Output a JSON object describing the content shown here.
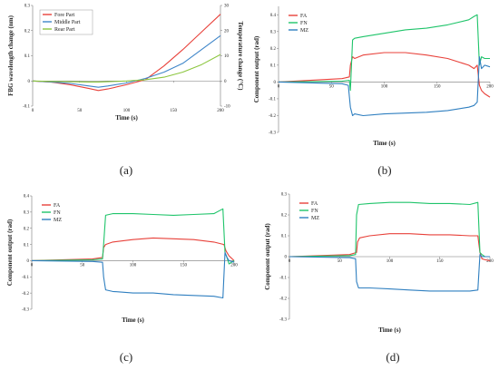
{
  "chart_data": [
    {
      "type": "line",
      "panel_label": "(a)",
      "xlabel": "Time (s)",
      "ylabel": "FBG wavelength change (nm)",
      "y2label": "Temperature change (°C)",
      "xlim": [
        0,
        200
      ],
      "ylim": [
        -0.1,
        0.3
      ],
      "y2lim": [
        -10,
        30
      ],
      "xticks": [
        "0",
        "50",
        "100",
        "150",
        "200"
      ],
      "yticks": [
        "-0.1",
        "0",
        "0.1",
        "0.2",
        "0.3"
      ],
      "y2ticks": [
        "-10",
        "0",
        "10",
        "20",
        "30"
      ],
      "legend_position": "top-left",
      "series": [
        {
          "name": "Fore Part",
          "color": "#e8413a",
          "x": [
            0,
            20,
            40,
            60,
            70,
            80,
            100,
            120,
            140,
            160,
            180,
            200
          ],
          "y": [
            0,
            -0.005,
            -0.015,
            -0.03,
            -0.038,
            -0.032,
            -0.015,
            0.005,
            0.06,
            0.125,
            0.195,
            0.265
          ]
        },
        {
          "name": "Middle Part",
          "color": "#3f86c9",
          "x": [
            0,
            20,
            40,
            60,
            70,
            80,
            100,
            120,
            140,
            160,
            180,
            200
          ],
          "y": [
            0,
            -0.004,
            -0.01,
            -0.02,
            -0.025,
            -0.02,
            -0.008,
            0.01,
            0.035,
            0.07,
            0.125,
            0.18
          ]
        },
        {
          "name": "Rear Part",
          "color": "#8cc63f",
          "x": [
            0,
            20,
            40,
            60,
            70,
            80,
            100,
            120,
            140,
            160,
            180,
            200
          ],
          "y": [
            0,
            -0.002,
            -0.003,
            -0.004,
            -0.004,
            -0.003,
            0.0,
            0.005,
            0.015,
            0.035,
            0.065,
            0.105
          ]
        }
      ]
    },
    {
      "type": "line",
      "panel_label": "(b)",
      "xlabel": "Time (s)",
      "ylabel": "Component output (rad)",
      "xlim": [
        0,
        200
      ],
      "ylim": [
        -0.3,
        0.45
      ],
      "xticks": [
        "0",
        "50",
        "100",
        "150",
        "200"
      ],
      "yticks": [
        "-0.3",
        "-0.2",
        "-0.1",
        "0",
        "0.1",
        "0.2",
        "0.3",
        "0.4"
      ],
      "legend_position": "top-left",
      "series": [
        {
          "name": "FA",
          "color": "#e8413a",
          "x": [
            0,
            60,
            67,
            68,
            70,
            72,
            80,
            100,
            120,
            140,
            160,
            180,
            185,
            188,
            190,
            192,
            195,
            200
          ],
          "y": [
            0,
            0.02,
            0.03,
            0.1,
            0.15,
            0.14,
            0.16,
            0.175,
            0.175,
            0.16,
            0.14,
            0.1,
            0.08,
            0.1,
            -0.02,
            -0.05,
            -0.07,
            -0.09
          ]
        },
        {
          "name": "FN",
          "color": "#1fc46a",
          "x": [
            0,
            60,
            67,
            68,
            70,
            72,
            80,
            100,
            120,
            140,
            160,
            180,
            185,
            188,
            190,
            192,
            195,
            200
          ],
          "y": [
            0,
            0.005,
            0.01,
            -0.05,
            0.25,
            0.26,
            0.27,
            0.29,
            0.31,
            0.32,
            0.34,
            0.37,
            0.39,
            0.4,
            0.1,
            0.15,
            0.14,
            0.14
          ]
        },
        {
          "name": "MZ",
          "color": "#2f7fc0",
          "x": [
            0,
            60,
            66,
            68,
            70,
            72,
            80,
            100,
            120,
            140,
            160,
            180,
            185,
            188,
            190,
            192,
            195,
            200
          ],
          "y": [
            0,
            -0.01,
            -0.02,
            -0.15,
            -0.2,
            -0.19,
            -0.2,
            -0.19,
            -0.185,
            -0.18,
            -0.17,
            -0.15,
            -0.14,
            -0.12,
            0.15,
            0.08,
            0.1,
            0.09
          ]
        }
      ]
    },
    {
      "type": "line",
      "panel_label": "(c)",
      "xlabel": "Time (s)",
      "ylabel": "Component output (rad)",
      "xlim": [
        0,
        200
      ],
      "ylim": [
        -0.3,
        0.4
      ],
      "xticks": [
        "0",
        "50",
        "100",
        "150",
        "200"
      ],
      "yticks": [
        "-0.3",
        "-0.2",
        "-0.1",
        "0",
        "0.1",
        "0.2",
        "0.3",
        "0.4"
      ],
      "legend_position": "top-left",
      "series": [
        {
          "name": "FA",
          "color": "#e8413a",
          "x": [
            0,
            60,
            70,
            71,
            73,
            80,
            100,
            120,
            140,
            160,
            180,
            190,
            192,
            195,
            200
          ],
          "y": [
            0,
            0.01,
            0.02,
            0.08,
            0.1,
            0.115,
            0.13,
            0.14,
            0.135,
            0.13,
            0.115,
            0.1,
            0.06,
            0.03,
            0.0
          ]
        },
        {
          "name": "FN",
          "color": "#1fc46a",
          "x": [
            0,
            60,
            70,
            71,
            73,
            80,
            100,
            120,
            140,
            160,
            180,
            189,
            191,
            193,
            195,
            200
          ],
          "y": [
            0,
            0.005,
            0.01,
            0.1,
            0.28,
            0.29,
            0.29,
            0.285,
            0.28,
            0.285,
            0.29,
            0.32,
            0.05,
            0.02,
            -0.02,
            0.0
          ]
        },
        {
          "name": "MZ",
          "color": "#2f7fc0",
          "x": [
            0,
            60,
            70,
            71,
            73,
            80,
            100,
            120,
            140,
            160,
            180,
            189,
            191,
            193,
            195,
            200
          ],
          "y": [
            0,
            -0.005,
            -0.01,
            -0.1,
            -0.18,
            -0.19,
            -0.2,
            -0.2,
            -0.21,
            -0.215,
            -0.22,
            -0.23,
            0.05,
            0.02,
            0.0,
            -0.01
          ]
        }
      ]
    },
    {
      "type": "line",
      "panel_label": "(d)",
      "xlabel": "Time (s)",
      "ylabel": "Component output (rad)",
      "xlim": [
        0,
        200
      ],
      "ylim": [
        -0.3,
        0.3
      ],
      "xticks": [
        "0",
        "50",
        "100",
        "150",
        "200"
      ],
      "yticks": [
        "-0.3",
        "-0.2",
        "-0.1",
        "0",
        "0.1",
        "0.2",
        "0.3"
      ],
      "legend_position": "top-left",
      "series": [
        {
          "name": "FA",
          "color": "#e8413a",
          "x": [
            0,
            60,
            67,
            68,
            70,
            80,
            100,
            120,
            140,
            160,
            180,
            188,
            190,
            192,
            195,
            200
          ],
          "y": [
            0,
            0.01,
            0.02,
            0.07,
            0.09,
            0.1,
            0.11,
            0.11,
            0.105,
            0.105,
            0.1,
            0.1,
            0.02,
            -0.01,
            -0.015,
            -0.02
          ]
        },
        {
          "name": "FN",
          "color": "#1fc46a",
          "x": [
            0,
            60,
            66,
            67,
            69,
            80,
            100,
            120,
            140,
            160,
            180,
            188,
            190,
            192,
            195,
            200
          ],
          "y": [
            0,
            0.005,
            0.01,
            0.2,
            0.25,
            0.255,
            0.26,
            0.26,
            0.255,
            0.255,
            0.25,
            0.26,
            0.02,
            0.01,
            0.0,
            0.0
          ]
        },
        {
          "name": "MZ",
          "color": "#2f7fc0",
          "x": [
            0,
            60,
            66,
            67,
            69,
            80,
            100,
            120,
            140,
            160,
            180,
            188,
            190,
            192,
            195,
            200
          ],
          "y": [
            0,
            -0.005,
            -0.01,
            -0.12,
            -0.15,
            -0.15,
            -0.155,
            -0.16,
            -0.165,
            -0.165,
            -0.165,
            -0.16,
            0.01,
            0.0,
            0.0,
            0.0
          ]
        }
      ]
    }
  ]
}
